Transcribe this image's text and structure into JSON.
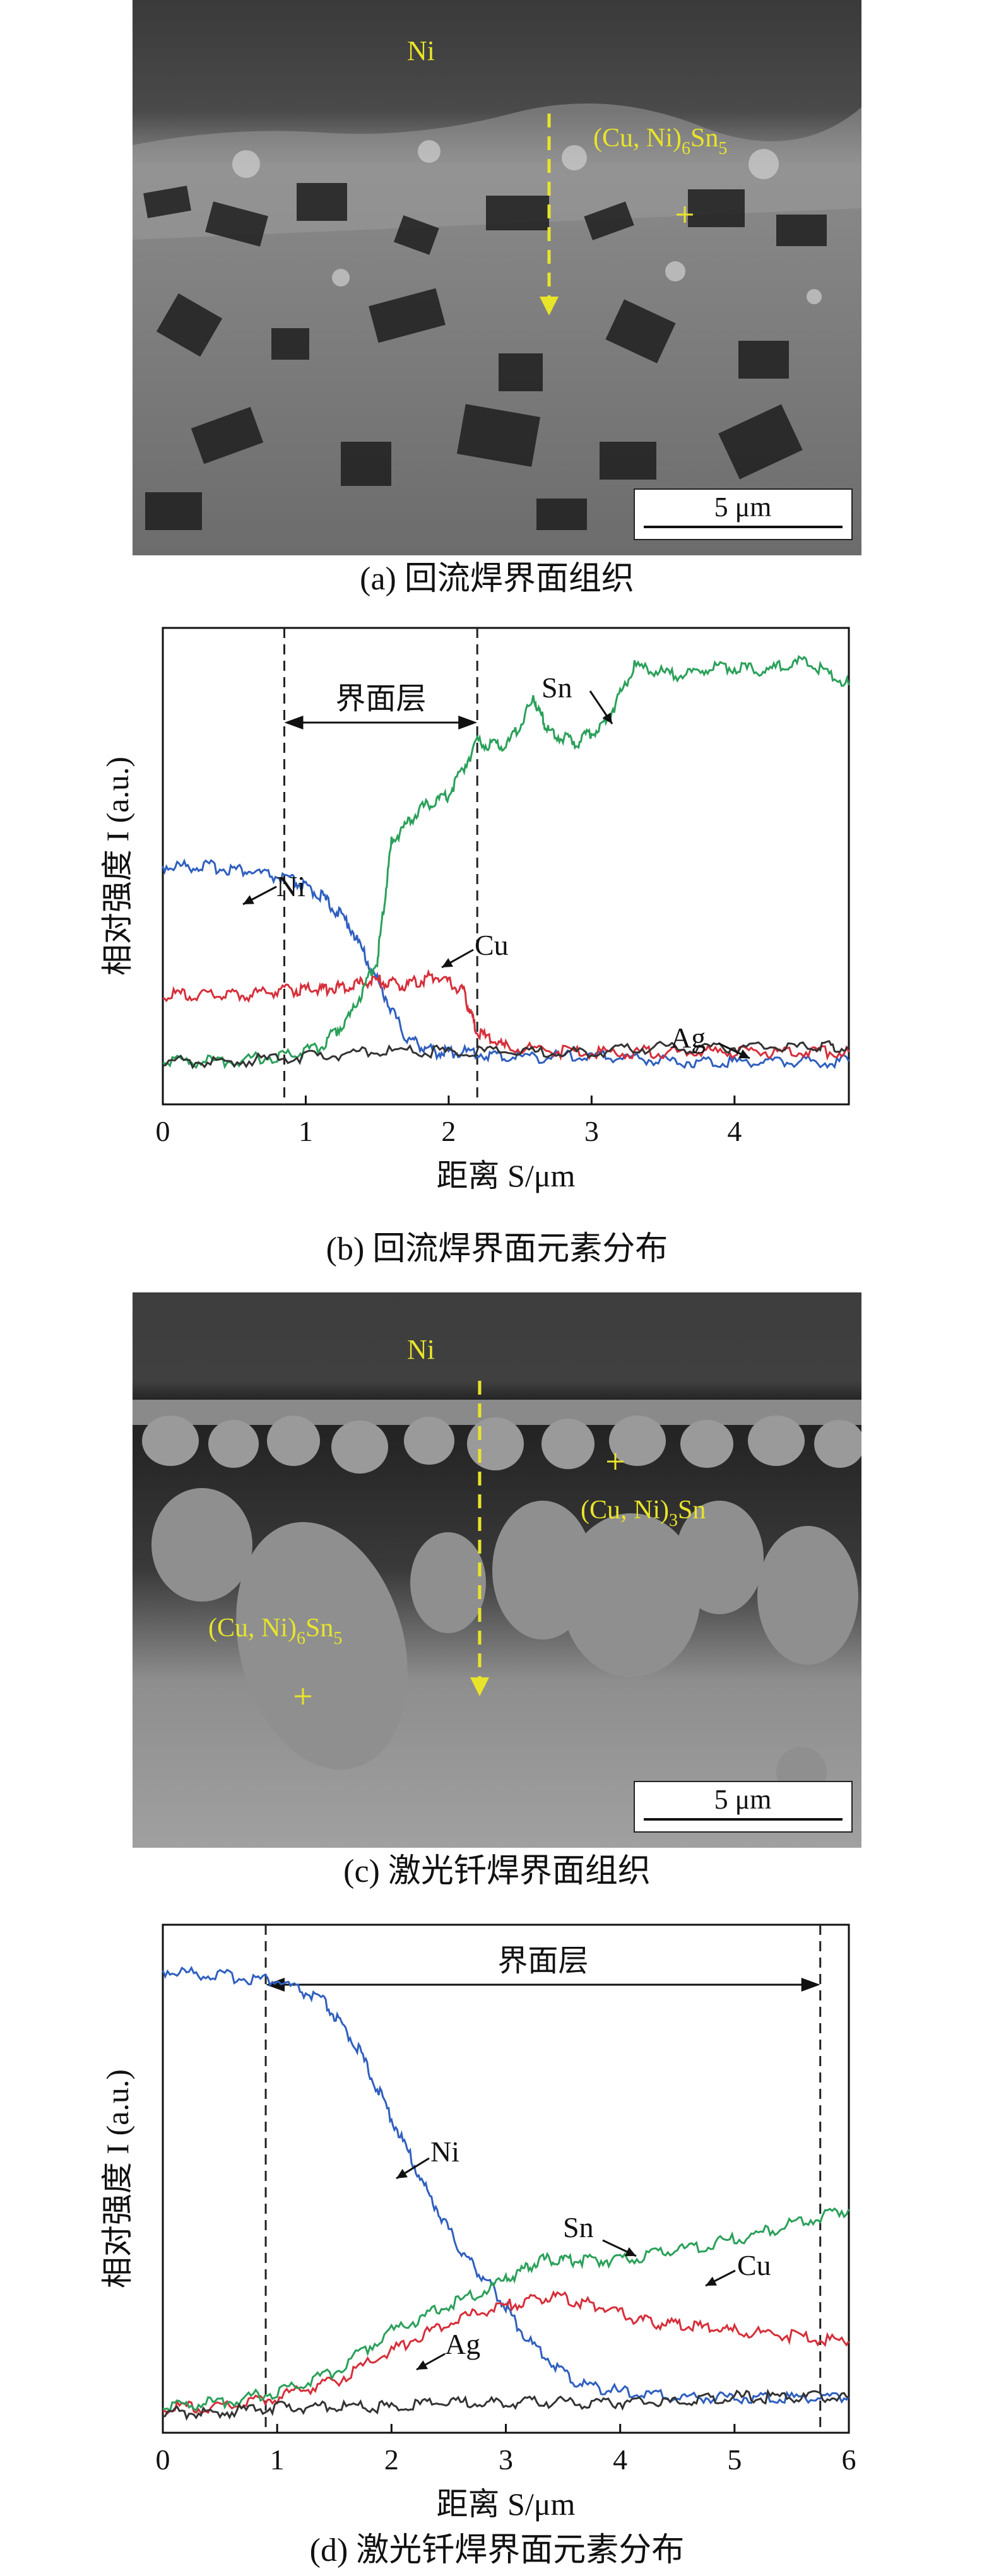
{
  "figure": {
    "panel_a": {
      "caption": "(a) 回流焊界面组织",
      "label_ni": "Ni",
      "label_phase_main": "(Cu, Ni)",
      "label_phase_sub1": "6",
      "label_phase_mid": "Sn",
      "label_phase_sub2": "5",
      "scale_bar": "5 μm",
      "colors": {
        "label": "#e8e42a",
        "arrow": "#e8e42a"
      }
    },
    "panel_c": {
      "caption": "(c) 激光钎焊界面组织",
      "label_ni": "Ni",
      "label_phase1_main": "(Cu, Ni)",
      "label_phase1_sub": "3",
      "label_phase1_end": "Sn",
      "label_phase2_main": "(Cu, Ni)",
      "label_phase2_sub1": "6",
      "label_phase2_mid": "Sn",
      "label_phase2_sub2": "5",
      "scale_bar": "5 μm"
    }
  },
  "chart_data": [
    {
      "type": "line",
      "panel": "b",
      "caption": "(b) 回流焊界面元素分布",
      "xlabel": "距离 S/μm",
      "ylabel": "相对强度 I (a.u.)",
      "xlim": [
        0,
        4.8
      ],
      "ylim": [
        0,
        1
      ],
      "xticks": [
        "0",
        "1",
        "2",
        "3",
        "4"
      ],
      "region_label": "界面层",
      "region": [
        0.85,
        2.2
      ],
      "series": [
        {
          "name": "Ni",
          "color": "#2f5fbf",
          "x": [
            0,
            0.3,
            0.6,
            0.9,
            1.1,
            1.3,
            1.5,
            1.7,
            1.9,
            2.1,
            2.4,
            2.8,
            3.2,
            3.6,
            4.0,
            4.4,
            4.8
          ],
          "y": [
            0.5,
            0.5,
            0.49,
            0.47,
            0.44,
            0.38,
            0.26,
            0.14,
            0.11,
            0.11,
            0.1,
            0.1,
            0.1,
            0.09,
            0.09,
            0.09,
            0.09
          ]
        },
        {
          "name": "Cu",
          "color": "#d62f3a",
          "x": [
            0,
            0.3,
            0.6,
            0.9,
            1.1,
            1.3,
            1.5,
            1.7,
            1.9,
            2.1,
            2.2,
            2.4,
            2.8,
            3.2,
            3.6,
            4.0,
            4.4,
            4.8
          ],
          "y": [
            0.23,
            0.23,
            0.23,
            0.24,
            0.24,
            0.25,
            0.26,
            0.25,
            0.27,
            0.24,
            0.15,
            0.12,
            0.11,
            0.11,
            0.11,
            0.11,
            0.11,
            0.11
          ]
        },
        {
          "name": "Sn",
          "color": "#2aa05a",
          "x": [
            0,
            0.4,
            0.8,
            1.1,
            1.3,
            1.5,
            1.6,
            1.8,
            2.0,
            2.2,
            2.4,
            2.6,
            2.7,
            2.9,
            3.1,
            3.3,
            3.6,
            3.9,
            4.2,
            4.5,
            4.8
          ],
          "y": [
            0.09,
            0.09,
            0.1,
            0.12,
            0.18,
            0.3,
            0.55,
            0.62,
            0.65,
            0.76,
            0.75,
            0.85,
            0.78,
            0.76,
            0.8,
            0.92,
            0.9,
            0.92,
            0.91,
            0.93,
            0.88
          ]
        },
        {
          "name": "Ag",
          "color": "#333333",
          "x": [
            0,
            0.5,
            1.0,
            1.5,
            2.0,
            2.5,
            3.0,
            3.5,
            4.0,
            4.5,
            4.8
          ],
          "y": [
            0.09,
            0.09,
            0.1,
            0.11,
            0.11,
            0.11,
            0.11,
            0.12,
            0.12,
            0.12,
            0.12
          ]
        }
      ]
    },
    {
      "type": "line",
      "panel": "d",
      "caption": "(d) 激光钎焊界面元素分布",
      "xlabel": "距离 S/μm",
      "ylabel": "相对强度 I (a.u.)",
      "xlim": [
        0,
        6
      ],
      "ylim": [
        0,
        1
      ],
      "xticks": [
        "0",
        "1",
        "2",
        "3",
        "4",
        "5",
        "6"
      ],
      "region_label": "界面层",
      "region": [
        0.9,
        5.75
      ],
      "series": [
        {
          "name": "Ni",
          "color": "#2f5fbf",
          "x": [
            0,
            0.5,
            1.0,
            1.4,
            1.7,
            2.0,
            2.3,
            2.6,
            2.9,
            3.2,
            3.6,
            4.0,
            4.5,
            5.0,
            5.5,
            6.0
          ],
          "y": [
            0.91,
            0.9,
            0.89,
            0.85,
            0.76,
            0.62,
            0.48,
            0.36,
            0.28,
            0.18,
            0.1,
            0.08,
            0.07,
            0.07,
            0.07,
            0.07
          ]
        },
        {
          "name": "Cu",
          "color": "#d62f3a",
          "x": [
            0,
            0.5,
            1.0,
            1.5,
            2.0,
            2.5,
            3.0,
            3.4,
            3.8,
            4.2,
            4.6,
            5.0,
            5.5,
            6.0
          ],
          "y": [
            0.05,
            0.05,
            0.07,
            0.1,
            0.16,
            0.22,
            0.25,
            0.27,
            0.25,
            0.22,
            0.21,
            0.2,
            0.19,
            0.18
          ]
        },
        {
          "name": "Sn",
          "color": "#2aa05a",
          "x": [
            0,
            0.5,
            1.0,
            1.5,
            2.0,
            2.5,
            3.0,
            3.3,
            3.6,
            4.0,
            4.5,
            5.0,
            5.5,
            6.0
          ],
          "y": [
            0.05,
            0.06,
            0.08,
            0.12,
            0.2,
            0.25,
            0.3,
            0.34,
            0.34,
            0.34,
            0.36,
            0.38,
            0.41,
            0.44
          ]
        },
        {
          "name": "Ag",
          "color": "#333333",
          "x": [
            0,
            0.5,
            1.0,
            1.5,
            2.0,
            2.5,
            3.0,
            3.5,
            4.0,
            4.5,
            5.0,
            5.5,
            6.0
          ],
          "y": [
            0.04,
            0.04,
            0.05,
            0.05,
            0.05,
            0.06,
            0.06,
            0.06,
            0.06,
            0.06,
            0.07,
            0.07,
            0.07
          ]
        }
      ]
    }
  ]
}
